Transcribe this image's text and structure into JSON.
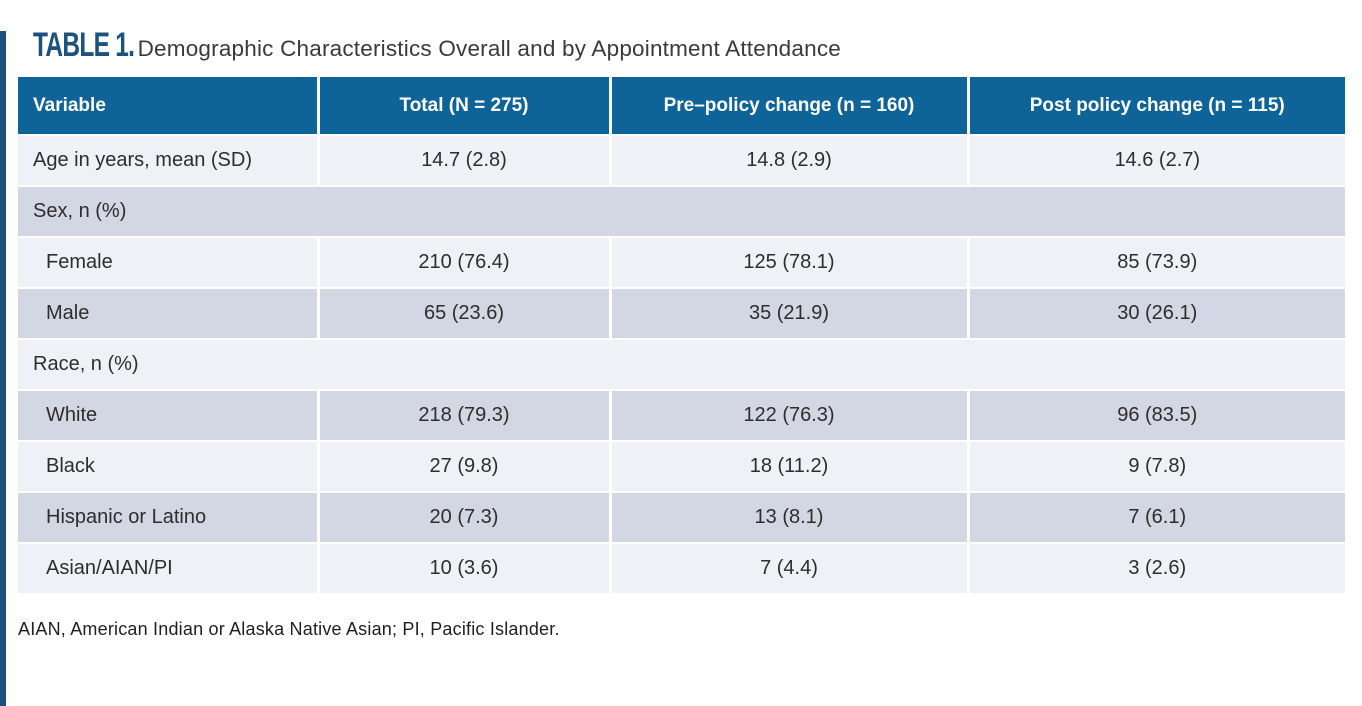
{
  "title": {
    "label": "TABLE 1.",
    "text": "Demographic Characteristics Overall and by Appointment Attendance"
  },
  "table": {
    "columns": [
      "Variable",
      "Total (N = 275)",
      "Pre–policy change (n = 160)",
      "Post policy change (n = 115)"
    ],
    "rows": [
      {
        "label": "Age in years, mean (SD)",
        "section": false,
        "indent": false,
        "values": [
          "14.7 (2.8)",
          "14.8 (2.9)",
          "14.6 (2.7)"
        ]
      },
      {
        "label": "Sex, n (%)",
        "section": true,
        "indent": false,
        "values": []
      },
      {
        "label": "Female",
        "section": false,
        "indent": true,
        "values": [
          "210 (76.4)",
          "125 (78.1)",
          "85 (73.9)"
        ]
      },
      {
        "label": "Male",
        "section": false,
        "indent": true,
        "values": [
          "65 (23.6)",
          "35 (21.9)",
          "30 (26.1)"
        ]
      },
      {
        "label": "Race, n (%)",
        "section": true,
        "indent": false,
        "values": []
      },
      {
        "label": "White",
        "section": false,
        "indent": true,
        "values": [
          "218 (79.3)",
          "122 (76.3)",
          "96 (83.5)"
        ]
      },
      {
        "label": "Black",
        "section": false,
        "indent": true,
        "values": [
          "27 (9.8)",
          "18 (11.2)",
          "9 (7.8)"
        ]
      },
      {
        "label": "Hispanic or Latino",
        "section": false,
        "indent": true,
        "values": [
          "20 (7.3)",
          "13 (8.1)",
          "7 (6.1)"
        ]
      },
      {
        "label": "Asian/AIAN/PI",
        "section": false,
        "indent": true,
        "values": [
          "10 (3.6)",
          "7 (4.4)",
          "3 (2.6)"
        ]
      }
    ],
    "footnote": "AIAN, American Indian or Alaska Native Asian; PI, Pacific Islander."
  },
  "colors": {
    "header_bg": "#0e6499",
    "accent_navy": "#1b5380",
    "row_light": "#f0f1f6",
    "row_dark": "#d3d6e3",
    "title_navy": "#1b5380"
  }
}
